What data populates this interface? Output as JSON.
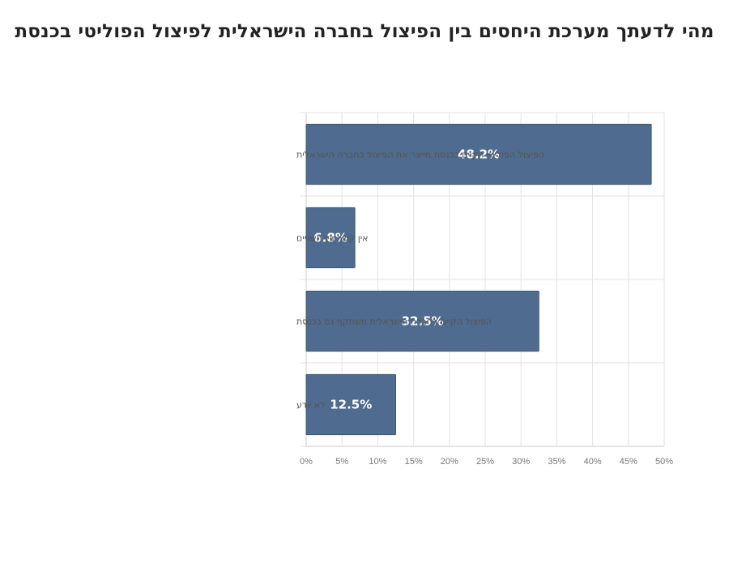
{
  "chart_data": {
    "type": "bar",
    "orientation": "horizontal",
    "title": "מהי לדעתך מערכת היחסים בין הפיצול בחברה הישראלית לפיצול הפוליטי בכנסת",
    "categories": [
      "הפיצול הפוליטי הקיים בכנסת מייצר את הפיצול בחברה הישראלית",
      "אין קשר בין השניים",
      "הפיצול הקיים בחברה הישראלית משתקף גם בכנסת",
      "לא יודע"
    ],
    "values": [
      48.2,
      6.8,
      32.5,
      12.5
    ],
    "data_labels": [
      "48.2%",
      "6.8%",
      "32.5%",
      "12.5%"
    ],
    "xlim": [
      0,
      50
    ],
    "x_ticks": [
      0,
      5,
      10,
      15,
      20,
      25,
      30,
      35,
      40,
      45,
      50
    ],
    "x_tick_labels": [
      "0%",
      "5%",
      "10%",
      "15%",
      "20%",
      "25%",
      "30%",
      "35%",
      "40%",
      "45%",
      "50%"
    ],
    "xlabel": "",
    "ylabel": "",
    "grid": true,
    "legend": "none",
    "bar_color": "#4f6b8f"
  }
}
